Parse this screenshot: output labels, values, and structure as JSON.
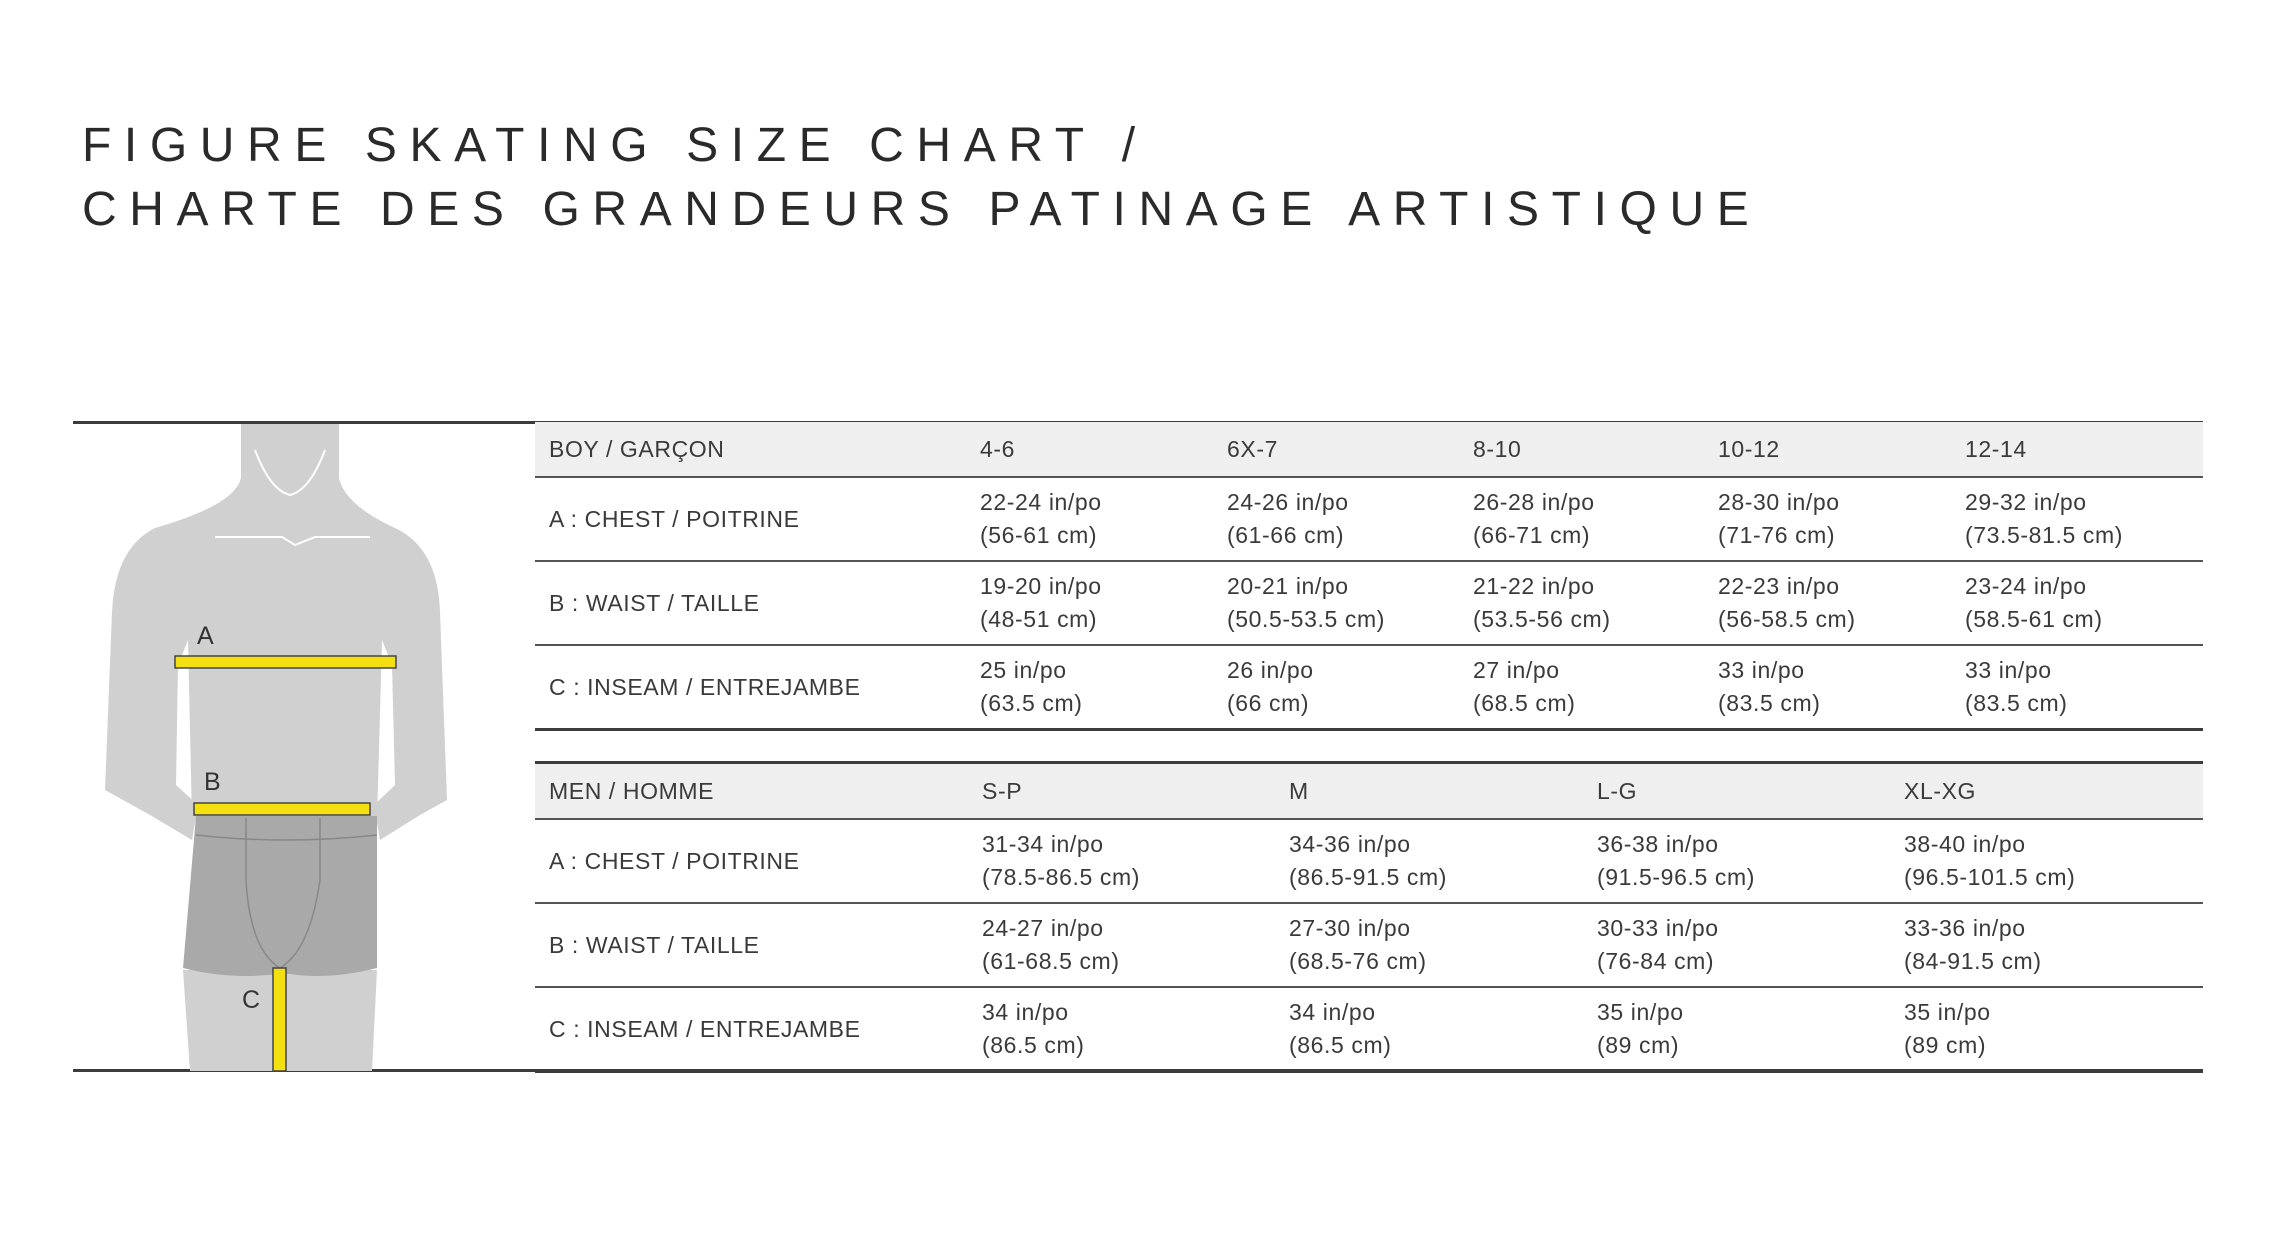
{
  "title": {
    "line1": "FIGURE SKATING SIZE CHART  /",
    "line2": "CHARTE DES GRANDEURS PATINAGE ARTISTIQUE"
  },
  "figure": {
    "labels": {
      "a": "A",
      "b": "B",
      "c": "C"
    },
    "colors": {
      "body": "#d0d0d0",
      "shorts": "#a9a9a9",
      "tape": "#f4e010"
    }
  },
  "boy_table": {
    "header": [
      "BOY  / GARÇON",
      "4-6",
      "6X-7",
      "8-10",
      "10-12",
      "12-14"
    ],
    "rows": [
      {
        "label": "A : CHEST / POITRINE",
        "values": [
          [
            "22-24 in/po",
            "(56-61 cm)"
          ],
          [
            "24-26 in/po",
            "(61-66 cm)"
          ],
          [
            "26-28 in/po",
            "(66-71 cm)"
          ],
          [
            "28-30 in/po",
            "(71-76 cm)"
          ],
          [
            "29-32 in/po",
            "(73.5-81.5 cm)"
          ]
        ]
      },
      {
        "label": "B : WAIST / TAILLE",
        "values": [
          [
            "19-20 in/po",
            "(48-51 cm)"
          ],
          [
            "20-21 in/po",
            "(50.5-53.5 cm)"
          ],
          [
            "21-22 in/po",
            "(53.5-56 cm)"
          ],
          [
            "22-23 in/po",
            "(56-58.5 cm)"
          ],
          [
            "23-24 in/po",
            "(58.5-61 cm)"
          ]
        ]
      },
      {
        "label": "C : INSEAM / ENTREJAMBE",
        "values": [
          [
            "25 in/po",
            "(63.5 cm)"
          ],
          [
            "26 in/po",
            "(66 cm)"
          ],
          [
            "27 in/po",
            "(68.5 cm)"
          ],
          [
            "33 in/po",
            "(83.5 cm)"
          ],
          [
            "33 in/po",
            "(83.5 cm)"
          ]
        ]
      }
    ]
  },
  "men_table": {
    "header": [
      "MEN  / HOMME",
      "S-P",
      "M",
      "L-G",
      "XL-XG"
    ],
    "rows": [
      {
        "label": "A : CHEST / POITRINE",
        "values": [
          [
            "31-34 in/po",
            "(78.5-86.5 cm)"
          ],
          [
            "34-36 in/po",
            "(86.5-91.5 cm)"
          ],
          [
            "36-38 in/po",
            "(91.5-96.5 cm)"
          ],
          [
            "38-40 in/po",
            "(96.5-101.5 cm)"
          ]
        ]
      },
      {
        "label": "B : WAIST / TAILLE",
        "values": [
          [
            "24-27 in/po",
            "(61-68.5 cm)"
          ],
          [
            "27-30 in/po",
            "(68.5-76 cm)"
          ],
          [
            "30-33 in/po",
            "(76-84 cm)"
          ],
          [
            "33-36 in/po",
            "(84-91.5 cm)"
          ]
        ]
      },
      {
        "label": "C : INSEAM / ENTREJAMBE",
        "values": [
          [
            "34 in/po",
            "(86.5 cm)"
          ],
          [
            "34 in/po",
            "(86.5 cm)"
          ],
          [
            "35 in/po",
            "(89 cm)"
          ],
          [
            "35 in/po",
            "(89 cm)"
          ]
        ]
      }
    ]
  }
}
